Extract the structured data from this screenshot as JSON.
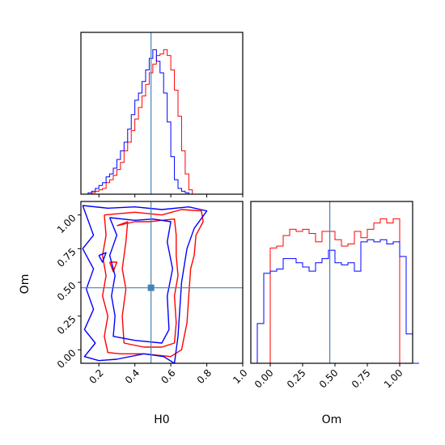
{
  "chart_data": {
    "type": "corner",
    "parameters": [
      "H0",
      "Om"
    ],
    "xlabel": "H0",
    "ylabel": "Om",
    "colors": {
      "series_a": "#ff0000",
      "series_b": "#0000ff",
      "truth": "#4682b4"
    },
    "truth": {
      "H0": 0.49,
      "Om": 0.46
    },
    "panels": [
      {
        "id": "hist-H0",
        "type": "histogram",
        "parameter": "H0",
        "xlim": [
          0.1,
          1.0
        ],
        "xticks": [
          0.2,
          0.4,
          0.6,
          0.8,
          1.0
        ],
        "bin_width": 0.02,
        "series": [
          {
            "color": "#ff0000",
            "x_start": 0.14,
            "values": [
              0,
              1,
              2,
              3,
              4,
              8,
              10,
              13,
              17,
              22,
              30,
              36,
              44,
              52,
              60,
              68,
              76,
              84,
              90,
              96,
              97,
              100,
              96,
              86,
              72,
              54,
              30,
              14,
              3,
              0
            ]
          },
          {
            "color": "#0000ff",
            "x_start": 0.14,
            "values": [
              1,
              2,
              4,
              6,
              8,
              12,
              14,
              18,
              24,
              30,
              36,
              45,
              55,
              65,
              70,
              78,
              86,
              94,
              100,
              92,
              84,
              70,
              50,
              26,
              10,
              4,
              2,
              1,
              0,
              0
            ]
          }
        ]
      },
      {
        "id": "hist-Om",
        "type": "histogram",
        "parameter": "Om",
        "xlim": [
          -0.15,
          1.1
        ],
        "xticks": [
          0.0,
          0.25,
          0.5,
          0.75,
          1.0
        ],
        "xtick_labels": [
          "0.00",
          "0.25",
          "0.50",
          "0.75",
          "1.00"
        ],
        "bin_width": 0.05,
        "series": [
          {
            "color": "#ff0000",
            "x_start": 0.0,
            "values": [
              55,
              56,
              61,
              64,
              63,
              64,
              62,
              58,
              63,
              63,
              59,
              56,
              57,
              63,
              60,
              64,
              67,
              69,
              67,
              69,
              0
            ]
          },
          {
            "color": "#0000ff",
            "x_start": -0.15,
            "values": [
              0,
              19,
              43,
              44,
              45,
              50,
              50,
              48,
              46,
              44,
              48,
              50,
              54,
              48,
              47,
              48,
              44,
              58,
              59,
              58,
              59,
              57,
              58,
              51,
              14,
              0
            ]
          }
        ]
      },
      {
        "id": "contour-H0-Om",
        "type": "contour",
        "xlim": [
          0.1,
          1.0
        ],
        "ylim": [
          -0.1,
          1.1
        ],
        "xticks": [
          0.2,
          0.4,
          0.6,
          0.8,
          1.0
        ],
        "xtick_labels": [
          "0.2",
          "0.4",
          "0.6",
          "0.8",
          "1.0"
        ],
        "yticks": [
          0.0,
          0.25,
          0.5,
          0.75,
          1.0
        ],
        "ytick_labels": [
          "0.00",
          "0.25",
          "0.50",
          "0.75",
          "1.00"
        ],
        "contours": [
          {
            "color": "#ff0000",
            "points": [
              [
                0.23,
                1.0
              ],
              [
                0.4,
                1.02
              ],
              [
                0.55,
                1.0
              ],
              [
                0.66,
                1.04
              ],
              [
                0.77,
                1.03
              ],
              [
                0.78,
                0.95
              ],
              [
                0.74,
                0.85
              ],
              [
                0.73,
                0.7
              ],
              [
                0.71,
                0.6
              ],
              [
                0.7,
                0.4
              ],
              [
                0.69,
                0.2
              ],
              [
                0.66,
                0.0
              ],
              [
                0.6,
                -0.05
              ],
              [
                0.45,
                -0.03
              ],
              [
                0.32,
                -0.03
              ],
              [
                0.25,
                -0.02
              ],
              [
                0.23,
                0.1
              ],
              [
                0.25,
                0.25
              ],
              [
                0.22,
                0.4
              ],
              [
                0.24,
                0.55
              ],
              [
                0.22,
                0.7
              ],
              [
                0.24,
                0.85
              ],
              [
                0.23,
                1.0
              ]
            ]
          },
          {
            "color": "#ff0000",
            "points": [
              [
                0.3,
                0.92
              ],
              [
                0.36,
                0.95
              ],
              [
                0.35,
                0.8
              ],
              [
                0.33,
                0.6
              ],
              [
                0.35,
                0.45
              ],
              [
                0.33,
                0.25
              ],
              [
                0.34,
                0.05
              ],
              [
                0.45,
                0.02
              ],
              [
                0.55,
                0.02
              ],
              [
                0.62,
                0.05
              ],
              [
                0.63,
                0.2
              ],
              [
                0.62,
                0.4
              ],
              [
                0.64,
                0.55
              ],
              [
                0.63,
                0.7
              ],
              [
                0.63,
                0.85
              ],
              [
                0.62,
                0.97
              ],
              [
                0.55,
                0.96
              ],
              [
                0.48,
                0.95
              ],
              [
                0.4,
                0.95
              ],
              [
                0.3,
                0.92
              ]
            ]
          },
          {
            "color": "#ff0000",
            "points": [
              [
                0.26,
                0.65
              ],
              [
                0.3,
                0.65
              ],
              [
                0.28,
                0.58
              ],
              [
                0.26,
                0.65
              ]
            ]
          },
          {
            "color": "#0000ff",
            "points": [
              [
                0.11,
                1.07
              ],
              [
                0.25,
                1.05
              ],
              [
                0.4,
                1.06
              ],
              [
                0.55,
                1.04
              ],
              [
                0.7,
                1.06
              ],
              [
                0.8,
                1.03
              ],
              [
                0.73,
                0.9
              ],
              [
                0.69,
                0.75
              ],
              [
                0.66,
                0.5
              ],
              [
                0.65,
                0.3
              ],
              [
                0.64,
                0.1
              ],
              [
                0.62,
                -0.1
              ],
              [
                0.56,
                -0.05
              ],
              [
                0.45,
                -0.03
              ],
              [
                0.3,
                -0.07
              ],
              [
                0.2,
                -0.08
              ],
              [
                0.12,
                -0.05
              ],
              [
                0.18,
                0.05
              ],
              [
                0.12,
                0.15
              ],
              [
                0.17,
                0.3
              ],
              [
                0.13,
                0.45
              ],
              [
                0.17,
                0.6
              ],
              [
                0.11,
                0.75
              ],
              [
                0.17,
                0.85
              ],
              [
                0.11,
                1.07
              ]
            ]
          },
          {
            "color": "#0000ff",
            "points": [
              [
                0.26,
                0.98
              ],
              [
                0.3,
                0.85
              ],
              [
                0.26,
                0.7
              ],
              [
                0.29,
                0.55
              ],
              [
                0.27,
                0.4
              ],
              [
                0.29,
                0.25
              ],
              [
                0.28,
                0.1
              ],
              [
                0.4,
                0.07
              ],
              [
                0.55,
                0.05
              ],
              [
                0.59,
                0.15
              ],
              [
                0.58,
                0.4
              ],
              [
                0.61,
                0.6
              ],
              [
                0.58,
                0.8
              ],
              [
                0.6,
                0.95
              ],
              [
                0.5,
                0.97
              ],
              [
                0.4,
                0.96
              ],
              [
                0.26,
                0.98
              ]
            ]
          },
          {
            "color": "#0000ff",
            "points": [
              [
                0.2,
                0.7
              ],
              [
                0.24,
                0.72
              ],
              [
                0.22,
                0.65
              ],
              [
                0.2,
                0.7
              ]
            ]
          }
        ]
      }
    ]
  }
}
